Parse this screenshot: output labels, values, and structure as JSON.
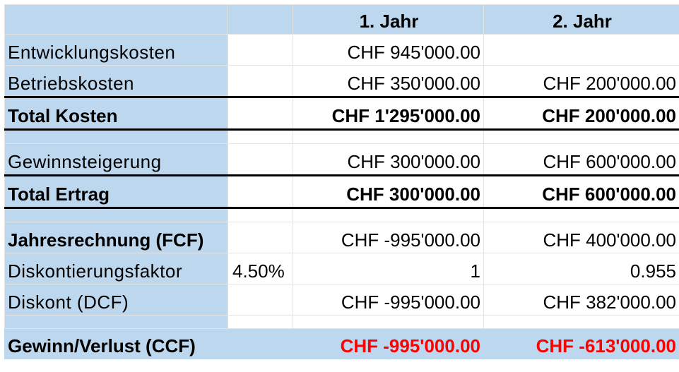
{
  "header": {
    "col1": "1. Jahr",
    "col2": "2. Jahr"
  },
  "rows": {
    "entwicklung": {
      "label": "Entwicklungskosten",
      "y1": "CHF 945'000.00",
      "y2": ""
    },
    "betrieb": {
      "label": "Betriebskosten",
      "y1": "CHF 350'000.00",
      "y2": "CHF 200'000.00"
    },
    "total_kosten": {
      "label": "Total Kosten",
      "y1": "CHF 1'295'000.00",
      "y2": "CHF 200'000.00"
    },
    "gewinnsteigerung": {
      "label": "Gewinnsteigerung",
      "y1": "CHF 300'000.00",
      "y2": "CHF 600'000.00"
    },
    "total_ertrag": {
      "label": "Total Ertrag",
      "y1": "CHF 300'000.00",
      "y2": "CHF 600'000.00"
    },
    "fcf": {
      "label": "Jahresrechnung (FCF)",
      "y1": "CHF -995'000.00",
      "y2": "CHF 400'000.00"
    },
    "faktor": {
      "label": "Diskontierungsfaktor",
      "rate": "4.50%",
      "y1": "1",
      "y2": "0.955"
    },
    "dcf": {
      "label": "Diskont (DCF)",
      "y1": "CHF -995'000.00",
      "y2": "CHF 382'000.00"
    },
    "ccf": {
      "label": "Gewinn/Verlust (CCF)",
      "y1": "CHF -995'000.00",
      "y2": "CHF -613'000.00"
    }
  },
  "colors": {
    "header_fill": "#bdd7ee",
    "negative": "#ff0000"
  }
}
